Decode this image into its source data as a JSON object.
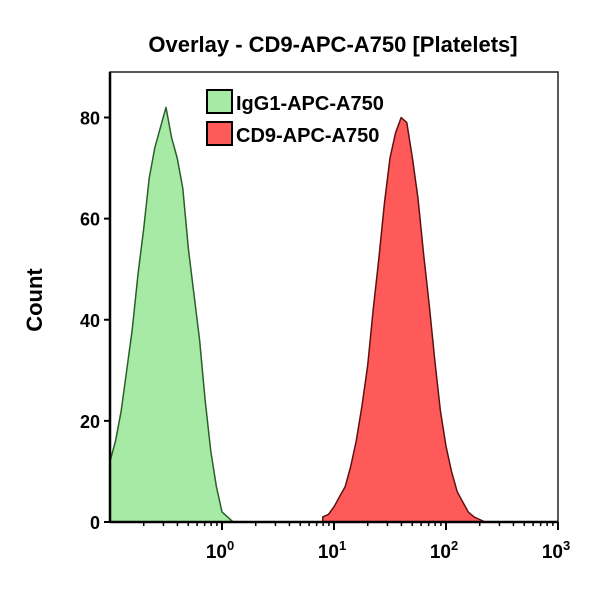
{
  "chart_data": {
    "type": "area",
    "title": "Overlay - CD9-APC-A750 [Platelets]",
    "xlabel": "",
    "ylabel": "Count",
    "xscale": "log",
    "xlim": [
      0.1,
      1000
    ],
    "ylim": [
      0,
      89
    ],
    "xticks": [
      {
        "value": 1,
        "base": "10",
        "exp": "0"
      },
      {
        "value": 10,
        "base": "10",
        "exp": "1"
      },
      {
        "value": 100,
        "base": "10",
        "exp": "2"
      },
      {
        "value": 1000,
        "base": "10",
        "exp": "3"
      }
    ],
    "yticks": [
      0,
      20,
      40,
      60,
      80
    ],
    "grid": false,
    "legend": "top-center",
    "series": [
      {
        "name": "IgG1-APC-A750",
        "fill": "#a6eaa6",
        "stroke": "#2a5e2a",
        "x": [
          0.1,
          0.112,
          0.126,
          0.141,
          0.158,
          0.178,
          0.2,
          0.224,
          0.251,
          0.282,
          0.316,
          0.355,
          0.398,
          0.447,
          0.501,
          0.562,
          0.631,
          0.708,
          0.794,
          0.891,
          1,
          1.12,
          1.26
        ],
        "y": [
          12,
          16,
          22,
          30,
          38,
          49,
          58,
          68,
          74,
          78,
          82,
          76,
          72,
          66,
          54,
          45,
          36,
          24,
          14,
          7,
          2,
          1,
          0
        ]
      },
      {
        "name": "CD9-APC-A750",
        "fill": "#ff5a5a",
        "stroke": "#5e1010",
        "x": [
          7.94,
          8.91,
          10,
          11.2,
          12.6,
          14.1,
          15.8,
          17.8,
          20,
          22.4,
          25.1,
          28.2,
          31.6,
          35.5,
          39.8,
          44.7,
          50.1,
          56.2,
          63.1,
          70.8,
          79.4,
          89.1,
          100,
          112,
          126,
          141,
          158,
          178,
          200,
          224,
          251
        ],
        "y": [
          1,
          1.5,
          3,
          5,
          7,
          11,
          16,
          23,
          31,
          42,
          52,
          63,
          72,
          77,
          80,
          79,
          72,
          64,
          53,
          43,
          32,
          22,
          15,
          10,
          6,
          4,
          2,
          1,
          0.5,
          0,
          0
        ]
      }
    ]
  }
}
